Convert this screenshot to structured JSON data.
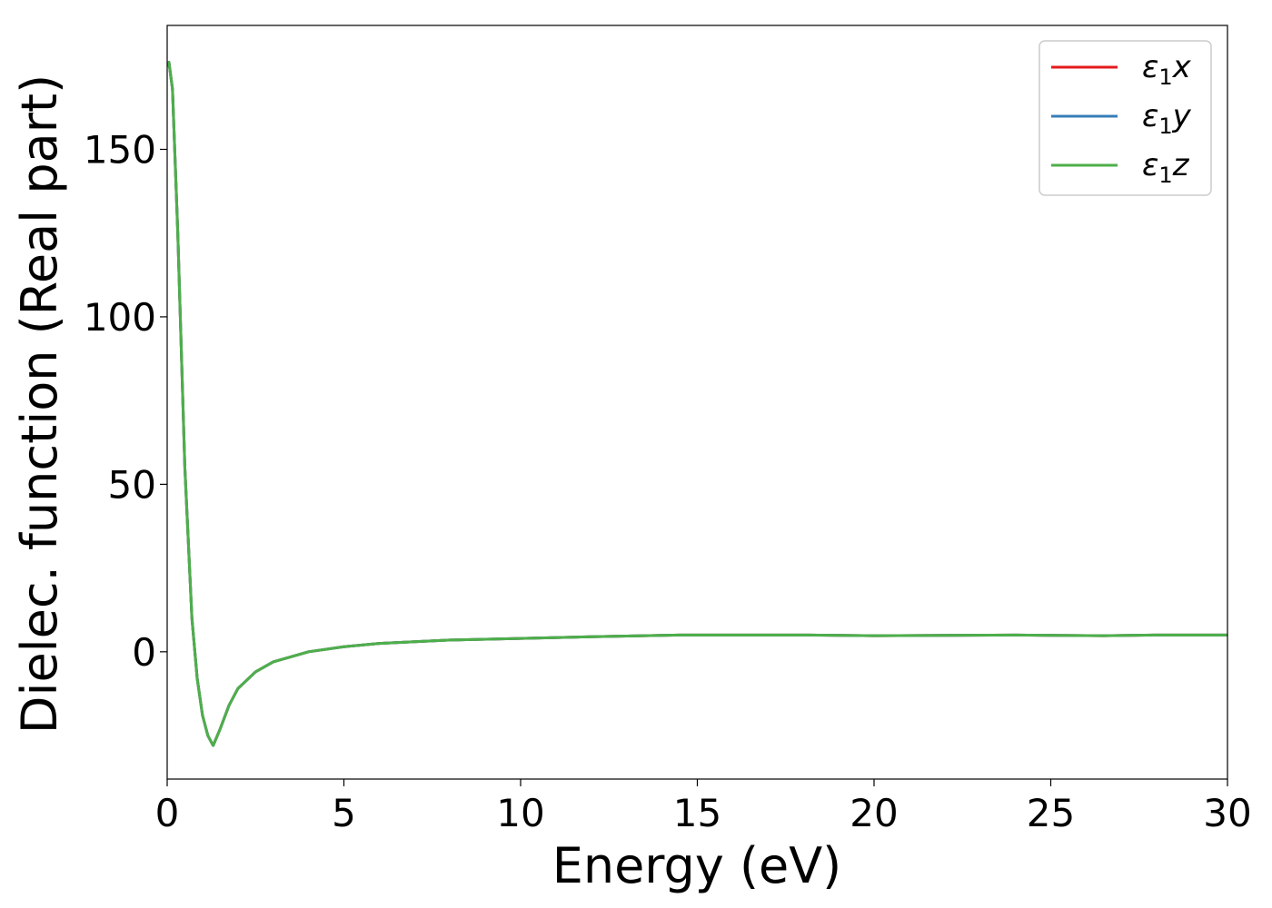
{
  "chart_data": {
    "type": "line",
    "title": "",
    "xlabel": "Energy (eV)",
    "ylabel": "Dielec. function (Real part)",
    "xlim": [
      0,
      30
    ],
    "ylim": [
      -38,
      187
    ],
    "xticks": [
      0,
      5,
      10,
      15,
      20,
      25,
      30
    ],
    "xtick_labels": [
      "0",
      "5",
      "10",
      "15",
      "20",
      "25",
      "30"
    ],
    "yticks": [
      0,
      50,
      100,
      150
    ],
    "ytick_labels": [
      "0",
      "50",
      "100",
      "150"
    ],
    "grid": false,
    "legend_position": "top-right",
    "series": [
      {
        "name": "ε1x",
        "legend_parts": {
          "main": "ε",
          "sub": "1",
          "tail": "x"
        },
        "color": "#e41a1c",
        "x": [
          0.0,
          0.05,
          0.15,
          0.3,
          0.5,
          0.7,
          0.85,
          1.0,
          1.15,
          1.3,
          1.5,
          1.75,
          2.0,
          2.5,
          3.0,
          4.0,
          5.0,
          6.0,
          8.0,
          10.0,
          12.0,
          14.5,
          16.0,
          18.0,
          20.0,
          22.0,
          24.0,
          26.5,
          28.0,
          30.0
        ],
        "y": [
          175,
          176,
          168,
          125,
          55,
          10,
          -8,
          -19,
          -25,
          -28,
          -23,
          -16,
          -11,
          -6,
          -3,
          0,
          1.5,
          2.5,
          3.5,
          4,
          4.5,
          5,
          5,
          5,
          4.8,
          4.9,
          5,
          4.8,
          5,
          5
        ]
      },
      {
        "name": "ε1y",
        "legend_parts": {
          "main": "ε",
          "sub": "1",
          "tail": "y"
        },
        "color": "#377eb8",
        "x": [
          0.0,
          0.05,
          0.15,
          0.3,
          0.5,
          0.7,
          0.85,
          1.0,
          1.15,
          1.3,
          1.5,
          1.75,
          2.0,
          2.5,
          3.0,
          4.0,
          5.0,
          6.0,
          8.0,
          10.0,
          12.0,
          14.5,
          16.0,
          18.0,
          20.0,
          22.0,
          24.0,
          26.5,
          28.0,
          30.0
        ],
        "y": [
          175,
          176,
          168,
          125,
          55,
          10,
          -8,
          -19,
          -25,
          -28,
          -23,
          -16,
          -11,
          -6,
          -3,
          0,
          1.5,
          2.5,
          3.5,
          4,
          4.5,
          5,
          5,
          5,
          4.8,
          4.9,
          5,
          4.8,
          5,
          5
        ]
      },
      {
        "name": "ε1z",
        "legend_parts": {
          "main": "ε",
          "sub": "1",
          "tail": "z"
        },
        "color": "#4daf4a",
        "x": [
          0.0,
          0.05,
          0.15,
          0.3,
          0.5,
          0.7,
          0.85,
          1.0,
          1.15,
          1.3,
          1.5,
          1.75,
          2.0,
          2.5,
          3.0,
          4.0,
          5.0,
          6.0,
          8.0,
          10.0,
          12.0,
          14.5,
          16.0,
          18.0,
          20.0,
          22.0,
          24.0,
          26.5,
          28.0,
          30.0
        ],
        "y": [
          175,
          176,
          168,
          125,
          55,
          10,
          -8,
          -19,
          -25,
          -28,
          -23,
          -16,
          -11,
          -6,
          -3,
          0,
          1.5,
          2.5,
          3.5,
          4,
          4.5,
          5,
          5,
          5,
          4.8,
          4.9,
          5,
          4.8,
          5,
          5
        ]
      }
    ]
  }
}
